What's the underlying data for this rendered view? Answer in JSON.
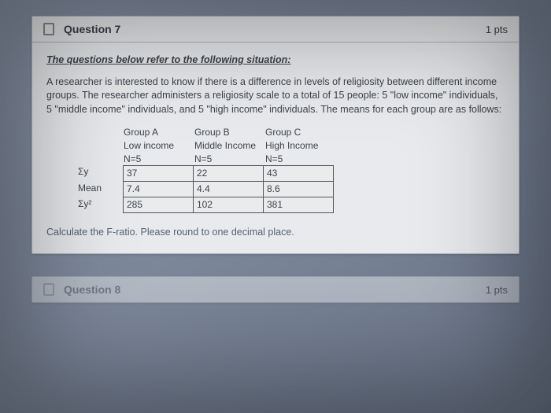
{
  "question7": {
    "title": "Question 7",
    "points": "1 pts",
    "situation_line": "The questions below refer to the following situation:",
    "paragraph": "A researcher is interested to know if there is a difference in levels of religiosity between different income groups. The researcher administers a religiosity scale to a total of 15 people: 5 \"low income\" individuals, 5 \"middle income\" individuals, and 5 \"high income\" individuals. The means for each group are as follows:",
    "groups": {
      "a": {
        "label": "Group A",
        "sub": "Low income",
        "n": "N=5"
      },
      "b": {
        "label": "Group B",
        "sub": "Middle Income",
        "n": "N=5"
      },
      "c": {
        "label": "Group C",
        "sub": "High Income",
        "n": "N=5"
      }
    },
    "table": {
      "row_labels": [
        "Σy",
        "Mean",
        "Σy²"
      ],
      "rows": [
        [
          "37",
          "22",
          "43"
        ],
        [
          "7.4",
          "4.4",
          "8.6"
        ],
        [
          "285",
          "102",
          "381"
        ]
      ],
      "border_color": "#555555",
      "text_color": "#3f434a",
      "font_size_pt": 9
    },
    "instruction": "Calculate the F-ratio. Please round to one decimal place."
  },
  "question8": {
    "title": "Question 8",
    "points": "1 pts"
  },
  "colors": {
    "screen_bg_start": "#8a95a8",
    "screen_bg_end": "#6a7588",
    "card_bg": "#e8eaed",
    "card_border": "#b0b4bc",
    "text_primary": "#3b3f46",
    "text_muted": "#5a6270"
  }
}
